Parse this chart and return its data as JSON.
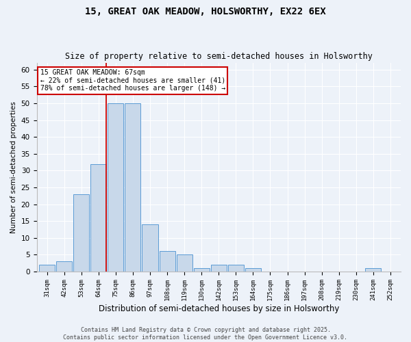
{
  "title1": "15, GREAT OAK MEADOW, HOLSWORTHY, EX22 6EX",
  "title2": "Size of property relative to semi-detached houses in Holsworthy",
  "xlabel": "Distribution of semi-detached houses by size in Holsworthy",
  "ylabel": "Number of semi-detached properties",
  "categories": [
    "31sqm",
    "42sqm",
    "53sqm",
    "64sqm",
    "75sqm",
    "86sqm",
    "97sqm",
    "108sqm",
    "119sqm",
    "130sqm",
    "142sqm",
    "153sqm",
    "164sqm",
    "175sqm",
    "186sqm",
    "197sqm",
    "208sqm",
    "219sqm",
    "230sqm",
    "241sqm",
    "252sqm"
  ],
  "values": [
    2,
    3,
    23,
    32,
    50,
    50,
    14,
    6,
    5,
    1,
    2,
    2,
    1,
    0,
    0,
    0,
    0,
    0,
    0,
    1,
    0
  ],
  "bar_color": "#c8d8ea",
  "bar_edge_color": "#5b9bd5",
  "background_color": "#edf2f9",
  "grid_color": "#ffffff",
  "property_line_x": 3.45,
  "property_label": "15 GREAT OAK MEADOW: 67sqm",
  "smaller_pct": "22%",
  "smaller_n": 41,
  "larger_pct": "78%",
  "larger_n": 148,
  "ylim": [
    0,
    62
  ],
  "yticks": [
    0,
    5,
    10,
    15,
    20,
    25,
    30,
    35,
    40,
    45,
    50,
    55,
    60
  ],
  "annotation_box_color": "#ffffff",
  "annotation_box_edge_color": "#cc0000",
  "property_line_color": "#cc0000",
  "footer": "Contains HM Land Registry data © Crown copyright and database right 2025.\nContains public sector information licensed under the Open Government Licence v3.0."
}
